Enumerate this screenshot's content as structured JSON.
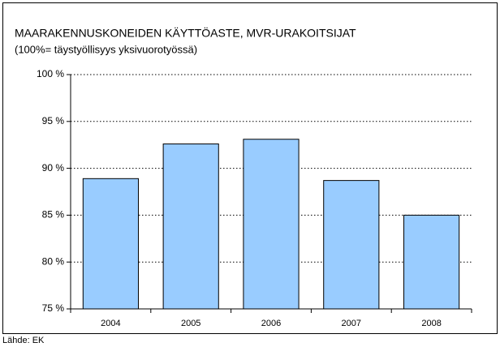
{
  "chart_data": {
    "type": "bar",
    "title": "MAARAKENNUSKONEIDEN KÄYTTÖASTE,  MVR-URAKOITSIJAT",
    "subtitle": "(100%= täystyöllisyys yksivuorotyössä)",
    "source": "Lähde: EK",
    "categories": [
      "2004",
      "2005",
      "2006",
      "2007",
      "2008"
    ],
    "values": [
      88.9,
      92.6,
      93.1,
      88.7,
      85.0
    ],
    "color": "#99ccff",
    "ylim": [
      75,
      100
    ],
    "yticks": [
      {
        "value": 75,
        "label": "75 %"
      },
      {
        "value": 80,
        "label": "80 %"
      },
      {
        "value": 85,
        "label": "85 %"
      },
      {
        "value": 90,
        "label": "90 %"
      },
      {
        "value": 95,
        "label": "95 %"
      },
      {
        "value": 100,
        "label": "100 %"
      }
    ],
    "grid": true
  }
}
